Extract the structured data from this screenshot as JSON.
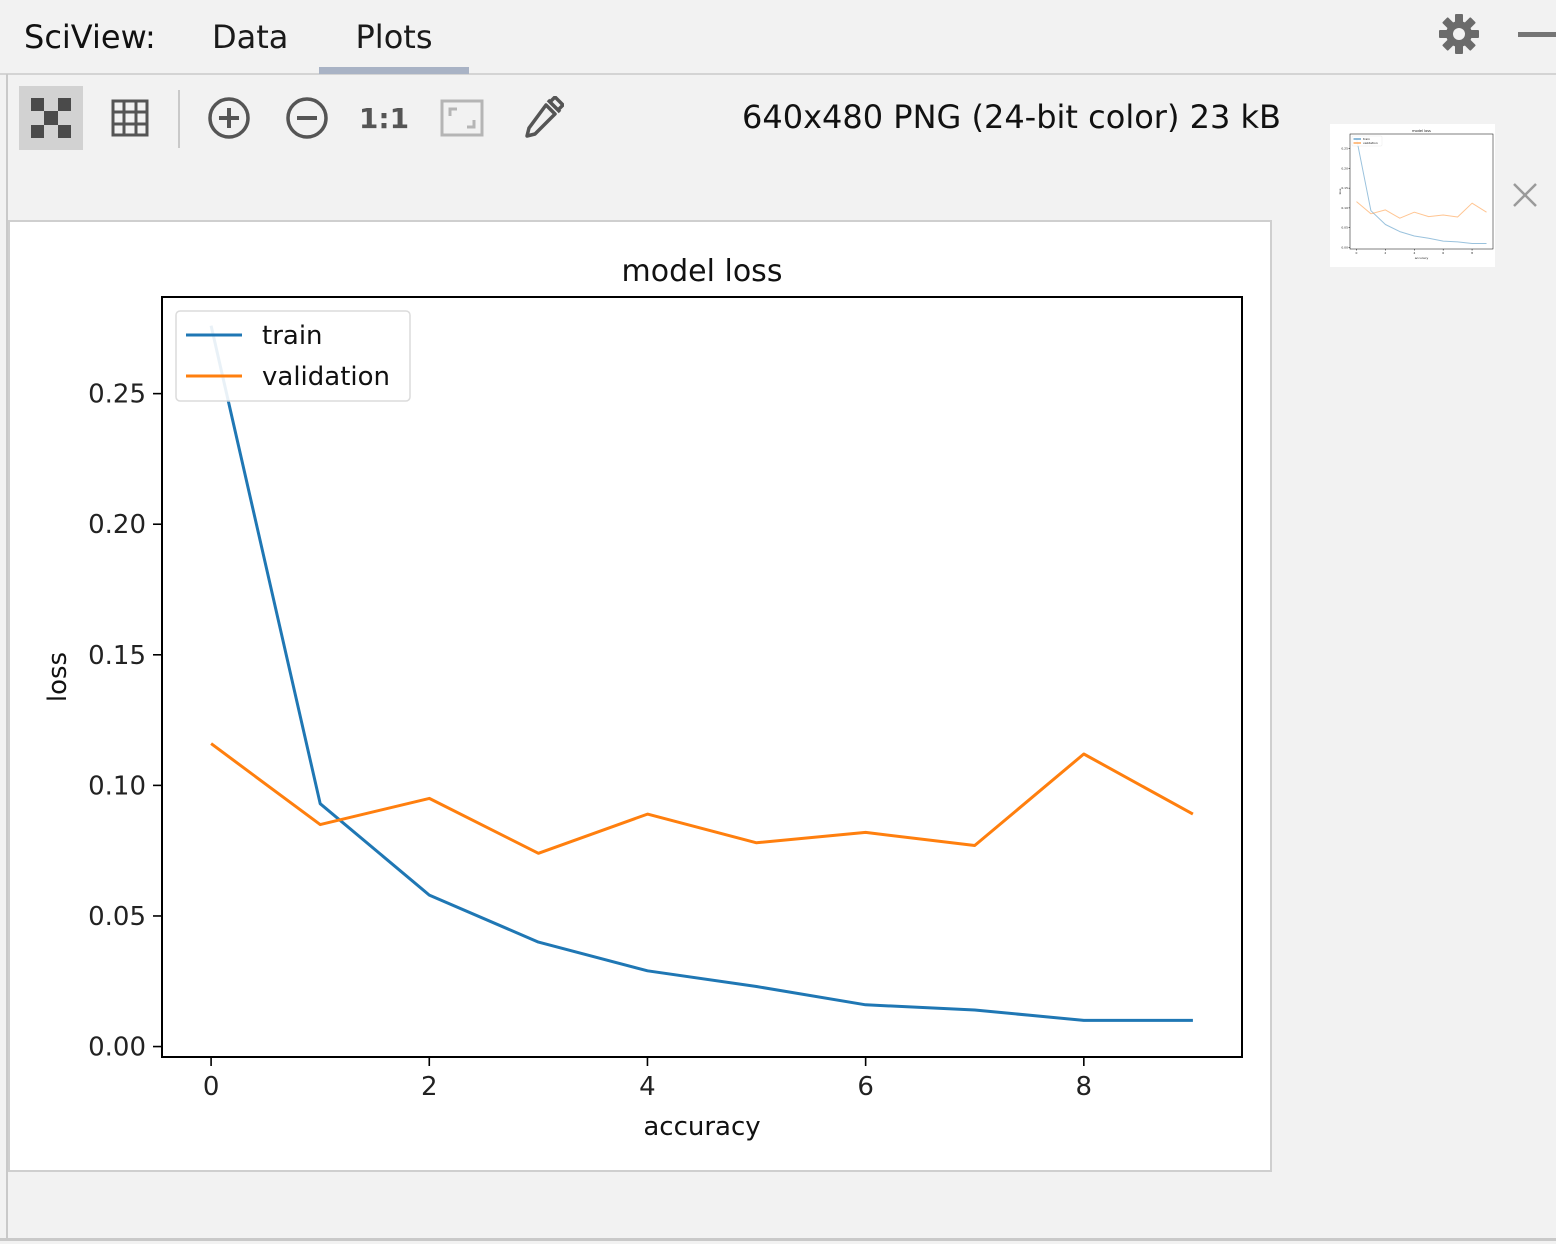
{
  "header": {
    "label": "SciView:",
    "tabs": [
      {
        "label": "Data",
        "active": false
      },
      {
        "label": "Plots",
        "active": true
      }
    ]
  },
  "toolbar": {
    "buttons": [
      {
        "name": "chessboard-icon",
        "active": true
      },
      {
        "name": "grid-icon"
      },
      {
        "name": "zoom-in-icon"
      },
      {
        "name": "zoom-out-icon"
      },
      {
        "name": "actual-size-icon",
        "label": "1:1"
      },
      {
        "name": "fit-to-window-icon"
      },
      {
        "name": "color-picker-icon"
      }
    ],
    "info": "640x480 PNG (24-bit color) 23 kB"
  },
  "chart_data": {
    "type": "line",
    "title": "model loss",
    "xlabel": "accuracy",
    "ylabel": "loss",
    "x": [
      0,
      1,
      2,
      3,
      4,
      5,
      6,
      7,
      8,
      9
    ],
    "xticks": [
      "0",
      "2",
      "4",
      "6",
      "8"
    ],
    "yticks": [
      "0.00",
      "0.05",
      "0.10",
      "0.15",
      "0.20",
      "0.25"
    ],
    "xlim": [
      -0.45,
      9.45
    ],
    "ylim": [
      -0.004,
      0.287
    ],
    "legend_position": "top-left",
    "grid": false,
    "series": [
      {
        "name": "train",
        "color": "#1f77b4",
        "values": [
          0.276,
          0.093,
          0.058,
          0.04,
          0.029,
          0.023,
          0.016,
          0.014,
          0.01,
          0.01
        ]
      },
      {
        "name": "validation",
        "color": "#ff7f0e",
        "values": [
          0.116,
          0.085,
          0.095,
          0.074,
          0.089,
          0.078,
          0.082,
          0.077,
          0.112,
          0.089
        ]
      }
    ]
  }
}
